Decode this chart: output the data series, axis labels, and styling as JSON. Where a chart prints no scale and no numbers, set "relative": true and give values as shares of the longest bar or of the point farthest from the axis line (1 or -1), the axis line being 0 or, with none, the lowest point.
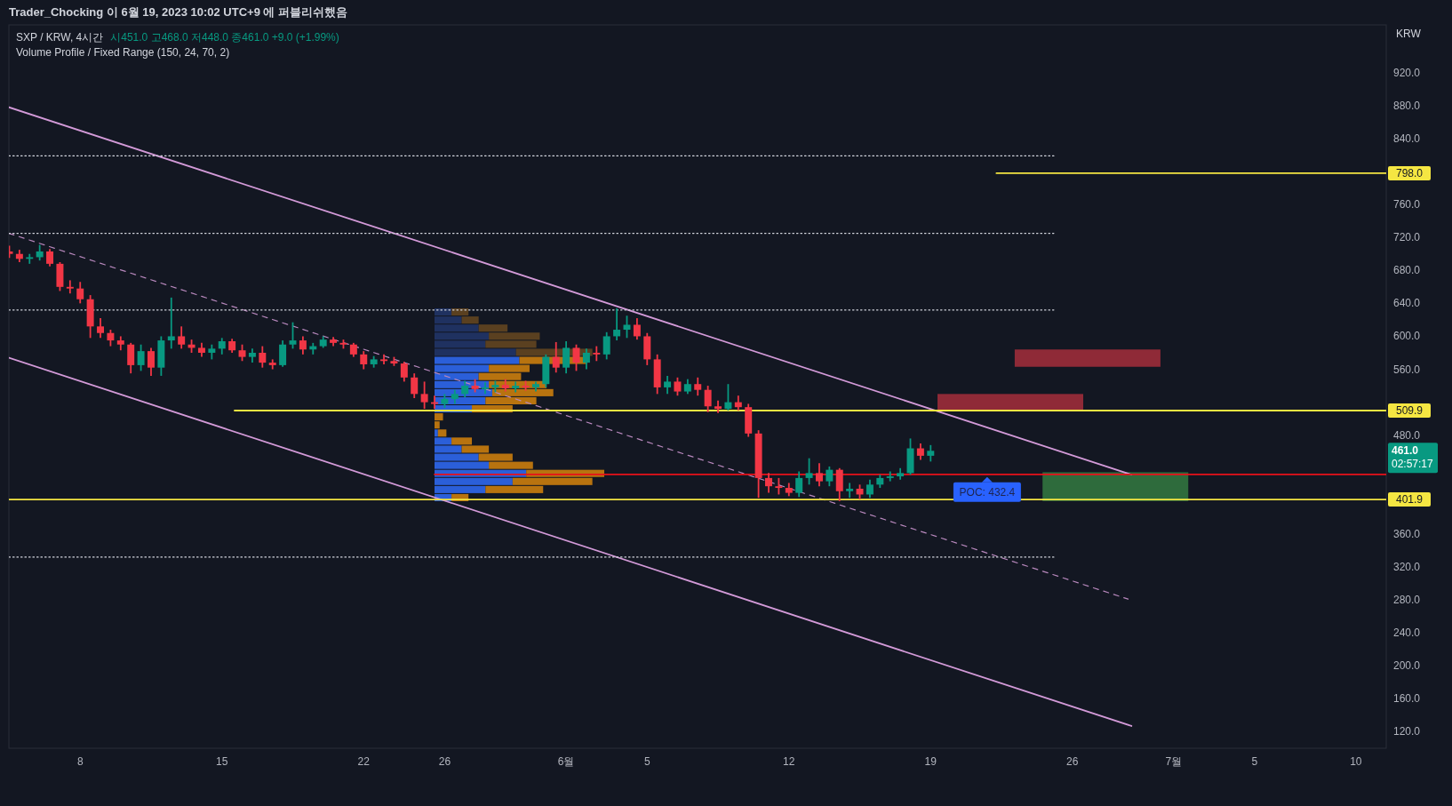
{
  "chart_data": [
    {
      "type": "candlestick",
      "title": "SXP / KRW, 4시간",
      "subtitle": "시451.0 고468.0 저448.0 종461.0 +9.0 (+1.99%)",
      "ylabel": "KRW",
      "annotations": [
        "Trader_Chocking 이 6월 19, 2023 10:02 UTC+9 에 퍼블리쉬했음",
        "Volume Profile / Fixed Range (150, 24, 70, 2)",
        {
          "text": "POC: 432.4",
          "x": "2023-06-21T19:00",
          "y": 432.4
        },
        "461.0",
        "02:57:17"
      ],
      "xlim": [
        "2023-05-04T11:30",
        "2023-07-11T12:00"
      ],
      "xticks": [
        {
          "value": "2023-05-08",
          "label": "8"
        },
        {
          "value": "2023-05-15",
          "label": "15"
        },
        {
          "value": "2023-05-22",
          "label": "22"
        },
        {
          "value": "2023-05-26",
          "label": "26"
        },
        {
          "value": "2023-06-01",
          "label": "6월"
        },
        {
          "value": "2023-06-05",
          "label": "5"
        },
        {
          "value": "2023-06-12",
          "label": "12"
        },
        {
          "value": "2023-06-19",
          "label": "19"
        },
        {
          "value": "2023-06-26",
          "label": "26"
        },
        {
          "value": "2023-07-01",
          "label": "7월"
        },
        {
          "value": "2023-07-05",
          "label": "5"
        },
        {
          "value": "2023-07-10",
          "label": "10"
        }
      ],
      "ylim": [
        100,
        978
      ],
      "yticks": [
        {
          "value": 120,
          "label": "120.0"
        },
        {
          "value": 160,
          "label": "160.0"
        },
        {
          "value": 200,
          "label": "200.0"
        },
        {
          "value": 240,
          "label": "240.0"
        },
        {
          "value": 280,
          "label": "280.0"
        },
        {
          "value": 320,
          "label": "320.0"
        },
        {
          "value": 360,
          "label": "360.0"
        },
        {
          "value": 480,
          "label": "480.0"
        },
        {
          "value": 560,
          "label": "560.0"
        },
        {
          "value": 600,
          "label": "600.0"
        },
        {
          "value": 640,
          "label": "640.0"
        },
        {
          "value": 680,
          "label": "680.0"
        },
        {
          "value": 720,
          "label": "720.0"
        },
        {
          "value": 760,
          "label": "760.0"
        },
        {
          "value": 840,
          "label": "840.0"
        },
        {
          "value": 880,
          "label": "880.0"
        },
        {
          "value": 920,
          "label": "920.0"
        }
      ],
      "x": [
        "2023-05-04T12:00",
        "2023-05-05T00:00",
        "2023-05-05T12:00",
        "2023-05-06T00:00",
        "2023-05-06T12:00",
        "2023-05-07T00:00",
        "2023-05-07T12:00",
        "2023-05-08T00:00",
        "2023-05-08T12:00",
        "2023-05-09T00:00",
        "2023-05-09T12:00",
        "2023-05-10T00:00",
        "2023-05-10T12:00",
        "2023-05-11T00:00",
        "2023-05-11T12:00",
        "2023-05-12T00:00",
        "2023-05-12T12:00",
        "2023-05-13T00:00",
        "2023-05-13T12:00",
        "2023-05-14T00:00",
        "2023-05-14T12:00",
        "2023-05-15T00:00",
        "2023-05-15T12:00",
        "2023-05-16T00:00",
        "2023-05-16T12:00",
        "2023-05-17T00:00",
        "2023-05-17T12:00",
        "2023-05-18T00:00",
        "2023-05-18T12:00",
        "2023-05-19T00:00",
        "2023-05-19T12:00",
        "2023-05-20T00:00",
        "2023-05-20T12:00",
        "2023-05-21T00:00",
        "2023-05-21T12:00",
        "2023-05-22T00:00",
        "2023-05-22T12:00",
        "2023-05-23T00:00",
        "2023-05-23T12:00",
        "2023-05-24T00:00",
        "2023-05-24T12:00",
        "2023-05-25T00:00",
        "2023-05-25T12:00",
        "2023-05-26T00:00",
        "2023-05-26T12:00",
        "2023-05-27T00:00",
        "2023-05-27T12:00",
        "2023-05-28T00:00",
        "2023-05-28T12:00",
        "2023-05-29T00:00",
        "2023-05-29T12:00",
        "2023-05-30T00:00",
        "2023-05-30T12:00",
        "2023-05-31T00:00",
        "2023-05-31T12:00",
        "2023-06-01T00:00",
        "2023-06-01T12:00",
        "2023-06-02T00:00",
        "2023-06-02T12:00",
        "2023-06-03T00:00",
        "2023-06-03T12:00",
        "2023-06-04T00:00",
        "2023-06-04T12:00",
        "2023-06-05T00:00",
        "2023-06-05T12:00",
        "2023-06-06T00:00",
        "2023-06-06T12:00",
        "2023-06-07T00:00",
        "2023-06-07T12:00",
        "2023-06-08T00:00",
        "2023-06-08T12:00",
        "2023-06-09T00:00",
        "2023-06-09T12:00",
        "2023-06-10T00:00",
        "2023-06-10T12:00",
        "2023-06-11T00:00",
        "2023-06-11T12:00",
        "2023-06-12T00:00",
        "2023-06-12T12:00",
        "2023-06-13T00:00",
        "2023-06-13T12:00",
        "2023-06-14T00:00",
        "2023-06-14T12:00",
        "2023-06-15T00:00",
        "2023-06-15T12:00",
        "2023-06-16T00:00",
        "2023-06-16T12:00",
        "2023-06-17T00:00",
        "2023-06-17T12:00",
        "2023-06-18T00:00",
        "2023-06-18T12:00",
        "2023-06-19T00:00"
      ],
      "ohlc": [
        [
          703,
          710,
          695,
          700
        ],
        [
          700,
          705,
          690,
          694
        ],
        [
          694,
          700,
          688,
          696
        ],
        [
          696,
          711,
          692,
          703
        ],
        [
          703,
          706,
          685,
          688
        ],
        [
          688,
          690,
          655,
          660
        ],
        [
          660,
          668,
          652,
          658
        ],
        [
          658,
          666,
          640,
          645
        ],
        [
          645,
          650,
          598,
          612
        ],
        [
          612,
          622,
          598,
          604
        ],
        [
          604,
          608,
          588,
          595
        ],
        [
          595,
          600,
          583,
          590
        ],
        [
          590,
          592,
          555,
          565
        ],
        [
          565,
          590,
          558,
          582
        ],
        [
          582,
          586,
          552,
          562
        ],
        [
          562,
          600,
          552,
          595
        ],
        [
          595,
          647,
          585,
          600
        ],
        [
          600,
          612,
          585,
          590
        ],
        [
          590,
          596,
          580,
          586
        ],
        [
          586,
          592,
          575,
          580
        ],
        [
          580,
          590,
          572,
          585
        ],
        [
          585,
          598,
          578,
          594
        ],
        [
          594,
          597,
          580,
          583
        ],
        [
          583,
          590,
          570,
          575
        ],
        [
          575,
          585,
          568,
          580
        ],
        [
          580,
          588,
          562,
          568
        ],
        [
          568,
          572,
          560,
          565
        ],
        [
          565,
          595,
          563,
          590
        ],
        [
          590,
          617,
          585,
          595
        ],
        [
          595,
          600,
          578,
          584
        ],
        [
          584,
          592,
          578,
          588
        ],
        [
          588,
          600,
          586,
          596
        ],
        [
          596,
          599,
          588,
          592
        ],
        [
          592,
          596,
          585,
          590
        ],
        [
          590,
          592,
          575,
          578
        ],
        [
          578,
          582,
          560,
          566
        ],
        [
          566,
          576,
          562,
          572
        ],
        [
          572,
          578,
          566,
          570
        ],
        [
          570,
          575,
          564,
          567
        ],
        [
          567,
          569,
          545,
          550
        ],
        [
          550,
          555,
          525,
          530
        ],
        [
          530,
          545,
          512,
          520
        ],
        [
          520,
          528,
          512,
          518
        ],
        [
          518,
          530,
          513,
          524
        ],
        [
          524,
          535,
          518,
          530
        ],
        [
          530,
          546,
          526,
          540
        ],
        [
          540,
          548,
          532,
          536
        ],
        [
          536,
          544,
          530,
          538
        ],
        [
          538,
          546,
          532,
          541
        ],
        [
          541,
          548,
          533,
          537
        ],
        [
          537,
          545,
          532,
          540
        ],
        [
          540,
          546,
          534,
          538
        ],
        [
          538,
          545,
          533,
          542
        ],
        [
          542,
          578,
          538,
          575
        ],
        [
          575,
          593,
          556,
          562
        ],
        [
          562,
          594,
          555,
          586
        ],
        [
          586,
          590,
          558,
          568
        ],
        [
          568,
          585,
          560,
          580
        ],
        [
          580,
          588,
          570,
          578
        ],
        [
          578,
          605,
          572,
          600
        ],
        [
          600,
          634,
          595,
          608
        ],
        [
          608,
          625,
          598,
          614
        ],
        [
          614,
          622,
          596,
          600
        ],
        [
          600,
          604,
          565,
          572
        ],
        [
          572,
          578,
          530,
          538
        ],
        [
          538,
          552,
          530,
          545
        ],
        [
          545,
          550,
          528,
          533
        ],
        [
          533,
          548,
          530,
          542
        ],
        [
          542,
          550,
          528,
          535
        ],
        [
          535,
          540,
          508,
          515
        ],
        [
          515,
          522,
          507,
          512
        ],
        [
          512,
          542,
          510,
          520
        ],
        [
          520,
          528,
          510,
          514
        ],
        [
          514,
          518,
          478,
          482
        ],
        [
          482,
          486,
          404,
          428
        ],
        [
          428,
          434,
          410,
          418
        ],
        [
          418,
          428,
          408,
          416
        ],
        [
          416,
          422,
          406,
          410
        ],
        [
          410,
          436,
          405,
          428
        ],
        [
          428,
          452,
          420,
          434
        ],
        [
          434,
          446,
          418,
          424
        ],
        [
          424,
          442,
          418,
          438
        ],
        [
          438,
          440,
          400,
          412
        ],
        [
          412,
          422,
          404,
          415
        ],
        [
          415,
          420,
          402,
          408
        ],
        [
          408,
          426,
          404,
          420
        ],
        [
          420,
          432,
          416,
          428
        ],
        [
          428,
          436,
          424,
          430
        ],
        [
          430,
          440,
          426,
          434
        ],
        [
          434,
          476,
          432,
          464
        ],
        [
          464,
          470,
          450,
          455
        ],
        [
          455,
          468,
          448,
          461
        ]
      ],
      "series": [
        {
          "type": "line",
          "color": "#d39ad8",
          "x": [
            "2023-05-04T11:30",
            "2023-06-28T22:00"
          ],
          "values": [
            878,
            432
          ]
        },
        {
          "type": "line",
          "color": "#d39ad8",
          "x": [
            "2023-05-04T11:30",
            "2023-06-28T22:00"
          ],
          "values": [
            574,
            127
          ]
        },
        {
          "type": "line",
          "color": "#b888bd",
          "line_style": "dashed",
          "x": [
            "2023-05-04T11:30",
            "2023-06-28T18:00"
          ],
          "values": [
            725,
            281
          ]
        },
        {
          "type": "line",
          "color": "#d1d4dc",
          "line_style": "dotted",
          "x": [
            "2023-05-04T11:30",
            "2023-06-25T02:00"
          ],
          "values": [
            819,
            819
          ]
        },
        {
          "type": "line",
          "color": "#d1d4dc",
          "line_style": "dotted",
          "x": [
            "2023-05-04T11:30",
            "2023-06-25T02:00"
          ],
          "values": [
            725,
            725
          ]
        },
        {
          "type": "line",
          "color": "#d1d4dc",
          "line_style": "dotted",
          "x": [
            "2023-05-04T11:30",
            "2023-06-25T02:00"
          ],
          "values": [
            632,
            632
          ]
        },
        {
          "type": "line",
          "color": "#d1d4dc",
          "line_style": "dotted",
          "x": [
            "2023-05-04T11:30",
            "2023-06-25T02:00"
          ],
          "values": [
            332,
            332
          ]
        },
        {
          "type": "line",
          "name": "798.0",
          "color": "#f5e642",
          "x": [
            "2023-06-22T06:00",
            "2023-07-11T12:00"
          ],
          "values": [
            798,
            798
          ]
        },
        {
          "type": "line",
          "name": "509.9",
          "color": "#f5e642",
          "x": [
            "2023-05-15T15:00",
            "2023-07-11T12:00"
          ],
          "values": [
            509.9,
            509.9
          ]
        },
        {
          "type": "line",
          "name": "401.9",
          "color": "#f5e642",
          "x": [
            "2023-05-04T11:30",
            "2023-07-11T12:00"
          ],
          "values": [
            401.9,
            401.9
          ]
        },
        {
          "type": "line",
          "color": "#e8101a",
          "x": [
            "2023-05-25T12:00",
            "2023-07-11T12:00"
          ],
          "values": [
            432.4,
            432.4
          ]
        },
        {
          "type": "bar",
          "color": "#8f2a37",
          "x": [
            "2023-06-22T22:30"
          ],
          "base": [
            509
          ],
          "values": [
            21
          ]
        },
        {
          "type": "bar",
          "color": "#8f2a37",
          "x": [
            "2023-06-26T18:00"
          ],
          "base": [
            563
          ],
          "values": [
            21
          ]
        },
        {
          "type": "bar",
          "color": "#2e6b3c",
          "x": [
            "2023-06-28T03:00"
          ],
          "base": [
            400
          ],
          "values": [
            35
          ]
        }
      ]
    },
    {
      "type": "bar",
      "orientation": "horizontal",
      "stacked": true,
      "relative": true,
      "categories": [
        null,
        null,
        null,
        null,
        null,
        null,
        null,
        null,
        null,
        null,
        null,
        null,
        null,
        null,
        null,
        null,
        null,
        null,
        null,
        null,
        null,
        null,
        null,
        null
      ],
      "series": [
        {
          "colors": [
            "#1f3160",
            "#1f3160",
            "#1f3160",
            "#1f3160",
            "#1f3160",
            "#1f3160",
            "#2b5fd9",
            "#2b5fd9",
            "#2b5fd9",
            "#2b5fd9",
            "#2b5fd9",
            "#2b5fd9",
            "#2b5fd9",
            "#2b5fd9",
            "#2b5fd9",
            "#2b5fd9",
            "#2b5fd9",
            "#2b5fd9",
            "#2b5fd9",
            "#2b5fd9",
            "#2b5fd9",
            "#2b5fd9",
            "#2b5fd9",
            "#2b5fd9"
          ],
          "values": [
            0.1,
            0.16,
            0.26,
            0.32,
            0.3,
            0.48,
            0.5,
            0.32,
            0.26,
            0.32,
            0.34,
            0.3,
            0.22,
            0,
            0,
            0.02,
            0.1,
            0.16,
            0.26,
            0.32,
            0.54,
            0.46,
            0.3,
            0.1
          ]
        },
        {
          "colors": [
            "#5a4020",
            "#5a4020",
            "#5a4020",
            "#5a4020",
            "#5a4020",
            "#5a4020",
            "#b8730f",
            "#b8730f",
            "#b8730f",
            "#b8730f",
            "#b8730f",
            "#b8730f",
            "#b8730f",
            "#b8730f",
            "#b8730f",
            "#b8730f",
            "#b8730f",
            "#b8730f",
            "#b8730f",
            "#b8730f",
            "#b8730f",
            "#b8730f",
            "#b8730f",
            "#b8730f"
          ],
          "values": [
            0.1,
            0.1,
            0.17,
            0.3,
            0.3,
            0.45,
            0.4,
            0.24,
            0.25,
            0.34,
            0.36,
            0.3,
            0.24,
            0.05,
            0.03,
            0.05,
            0.12,
            0.16,
            0.2,
            0.26,
            0.46,
            0.47,
            0.34,
            0.1
          ]
        }
      ]
    }
  ]
}
